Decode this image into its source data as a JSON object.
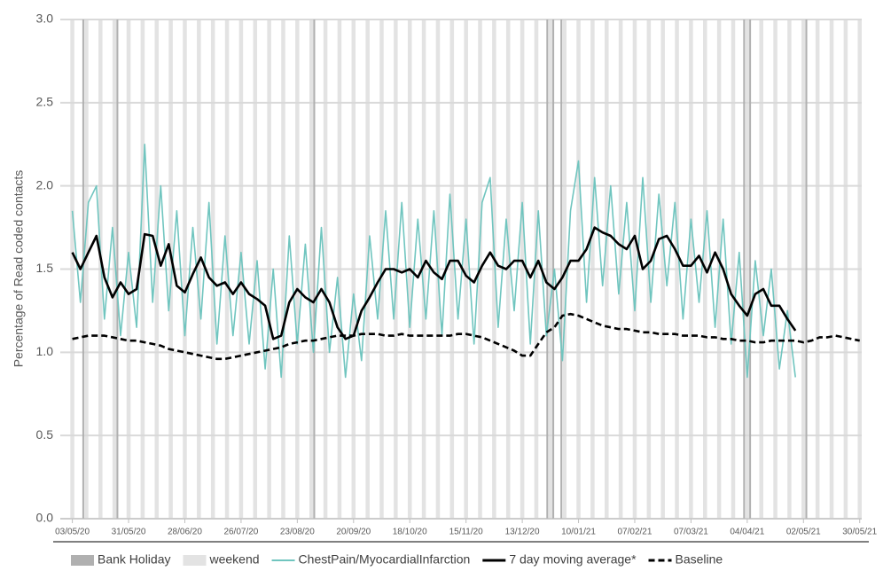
{
  "chart_data": {
    "type": "line",
    "ylabel": "Percentage of Read coded contacts",
    "ylim": [
      0,
      3
    ],
    "yticks": [
      {
        "value": 0,
        "label": "0.0"
      },
      {
        "value": 0.5,
        "label": "0.5"
      },
      {
        "value": 1,
        "label": "1.0"
      },
      {
        "value": 1.5,
        "label": "1.5"
      },
      {
        "value": 2,
        "label": "2.0"
      },
      {
        "value": 2.5,
        "label": "2.5"
      },
      {
        "value": 3,
        "label": "3.0"
      }
    ],
    "xlim": [
      "27/04/20",
      "31/05/21"
    ],
    "xticks": [
      "03/05/20",
      "31/05/20",
      "28/06/20",
      "26/07/20",
      "23/08/20",
      "20/09/20",
      "18/10/20",
      "15/11/20",
      "13/12/20",
      "10/01/21",
      "07/02/21",
      "07/03/21",
      "04/04/21",
      "02/05/21",
      "30/05/21"
    ],
    "grid": true,
    "legend": "bottom",
    "bank_holiday": {
      "name": "Bank Holiday",
      "color": "#b0b0b0",
      "dates": [
        "08/05/20",
        "25/05/20",
        "31/08/20",
        "25/12/20",
        "28/12/20",
        "01/01/21",
        "02/04/21",
        "05/04/21",
        "03/05/21"
      ]
    },
    "weekend": {
      "name": "weekend",
      "color": "#e3e3e3"
    },
    "x": [
      "03/05/20",
      "07/05/20",
      "11/05/20",
      "15/05/20",
      "19/05/20",
      "23/05/20",
      "27/05/20",
      "31/05/20",
      "04/06/20",
      "08/06/20",
      "12/06/20",
      "16/06/20",
      "20/06/20",
      "24/06/20",
      "28/06/20",
      "02/07/20",
      "06/07/20",
      "10/07/20",
      "14/07/20",
      "18/07/20",
      "22/07/20",
      "26/07/20",
      "30/07/20",
      "03/08/20",
      "07/08/20",
      "11/08/20",
      "15/08/20",
      "19/08/20",
      "23/08/20",
      "27/08/20",
      "31/08/20",
      "04/09/20",
      "08/09/20",
      "12/09/20",
      "16/09/20",
      "20/09/20",
      "24/09/20",
      "28/09/20",
      "02/10/20",
      "06/10/20",
      "10/10/20",
      "14/10/20",
      "18/10/20",
      "22/10/20",
      "26/10/20",
      "30/10/20",
      "03/11/20",
      "07/11/20",
      "11/11/20",
      "15/11/20",
      "19/11/20",
      "23/11/20",
      "27/11/20",
      "01/12/20",
      "05/12/20",
      "09/12/20",
      "13/12/20",
      "17/12/20",
      "21/12/20",
      "25/12/20",
      "29/12/20",
      "02/01/21",
      "06/01/21",
      "10/01/21",
      "14/01/21",
      "18/01/21",
      "22/01/21",
      "26/01/21",
      "30/01/21",
      "03/02/21",
      "07/02/21",
      "11/02/21",
      "15/02/21",
      "19/02/21",
      "23/02/21",
      "27/02/21",
      "03/03/21",
      "07/03/21",
      "11/03/21",
      "15/03/21",
      "19/03/21",
      "23/03/21",
      "27/03/21",
      "31/03/21",
      "04/04/21",
      "08/04/21",
      "12/04/21",
      "16/04/21",
      "20/04/21",
      "24/04/21",
      "28/04/21",
      "02/05/21",
      "06/05/21",
      "10/05/21",
      "14/05/21",
      "18/05/21",
      "22/05/21",
      "26/05/21",
      "30/05/21"
    ],
    "series": [
      {
        "name": "ChestPain/MyocardialInfarction",
        "color": "#70c5bf",
        "style": "solid",
        "values": [
          1.85,
          1.3,
          1.9,
          2.0,
          1.2,
          1.75,
          1.1,
          1.6,
          1.15,
          2.25,
          1.3,
          2.0,
          1.25,
          1.85,
          1.1,
          1.75,
          1.2,
          1.9,
          1.05,
          1.7,
          1.1,
          1.6,
          1.05,
          1.55,
          0.9,
          1.5,
          0.85,
          1.7,
          1.05,
          1.65,
          1.0,
          1.75,
          1.0,
          1.45,
          0.85,
          1.35,
          0.95,
          1.7,
          1.2,
          1.85,
          1.2,
          1.9,
          1.15,
          1.8,
          1.2,
          1.85,
          1.1,
          1.95,
          1.2,
          1.8,
          1.05,
          1.9,
          2.05,
          1.15,
          1.8,
          1.25,
          1.9,
          1.05,
          1.85,
          1.1,
          1.5,
          0.95,
          1.85,
          2.15,
          1.3,
          2.05,
          1.4,
          2.0,
          1.35,
          1.9,
          1.25,
          2.05,
          1.3,
          1.95,
          1.4,
          1.9,
          1.2,
          1.8,
          1.3,
          1.85,
          1.15,
          1.8,
          1.05,
          1.6,
          0.85,
          1.55,
          1.1,
          1.5,
          0.9,
          1.25,
          0.85,
          null,
          null,
          null,
          null,
          null,
          null,
          null,
          null
        ]
      },
      {
        "name": "7 day moving average*",
        "color": "#000000",
        "style": "solid",
        "values": [
          1.6,
          1.5,
          1.6,
          1.7,
          1.45,
          1.33,
          1.42,
          1.35,
          1.38,
          1.71,
          1.7,
          1.52,
          1.65,
          1.4,
          1.36,
          1.47,
          1.57,
          1.45,
          1.4,
          1.42,
          1.35,
          1.42,
          1.35,
          1.32,
          1.28,
          1.08,
          1.1,
          1.3,
          1.38,
          1.33,
          1.3,
          1.38,
          1.3,
          1.15,
          1.08,
          1.1,
          1.25,
          1.33,
          1.42,
          1.5,
          1.5,
          1.48,
          1.5,
          1.45,
          1.55,
          1.48,
          1.44,
          1.55,
          1.55,
          1.46,
          1.42,
          1.52,
          1.6,
          1.52,
          1.5,
          1.55,
          1.55,
          1.45,
          1.55,
          1.42,
          1.38,
          1.45,
          1.55,
          1.55,
          1.62,
          1.75,
          1.72,
          1.7,
          1.65,
          1.62,
          1.7,
          1.5,
          1.55,
          1.68,
          1.7,
          1.62,
          1.52,
          1.52,
          1.58,
          1.48,
          1.6,
          1.5,
          1.35,
          1.28,
          1.22,
          1.35,
          1.38,
          1.28,
          1.28,
          1.2,
          1.13,
          null,
          null,
          null,
          null,
          null,
          null,
          null,
          null
        ]
      },
      {
        "name": "Baseline",
        "color": "#000000",
        "style": "dashed",
        "values": [
          1.08,
          1.09,
          1.1,
          1.1,
          1.1,
          1.09,
          1.08,
          1.07,
          1.07,
          1.06,
          1.05,
          1.04,
          1.02,
          1.01,
          1.0,
          0.99,
          0.98,
          0.97,
          0.96,
          0.96,
          0.97,
          0.98,
          0.99,
          1.0,
          1.01,
          1.02,
          1.03,
          1.05,
          1.06,
          1.07,
          1.07,
          1.08,
          1.09,
          1.1,
          1.1,
          1.1,
          1.11,
          1.11,
          1.11,
          1.1,
          1.1,
          1.11,
          1.1,
          1.1,
          1.1,
          1.1,
          1.1,
          1.1,
          1.11,
          1.11,
          1.1,
          1.09,
          1.07,
          1.05,
          1.03,
          1.01,
          0.98,
          0.98,
          1.05,
          1.12,
          1.15,
          1.22,
          1.23,
          1.22,
          1.2,
          1.18,
          1.16,
          1.15,
          1.14,
          1.14,
          1.13,
          1.12,
          1.12,
          1.11,
          1.11,
          1.11,
          1.1,
          1.1,
          1.1,
          1.09,
          1.09,
          1.08,
          1.08,
          1.07,
          1.07,
          1.06,
          1.06,
          1.07,
          1.07,
          1.07,
          1.07,
          1.06,
          1.07,
          1.09,
          1.09,
          1.1,
          1.09,
          1.08,
          1.07
        ]
      }
    ]
  }
}
